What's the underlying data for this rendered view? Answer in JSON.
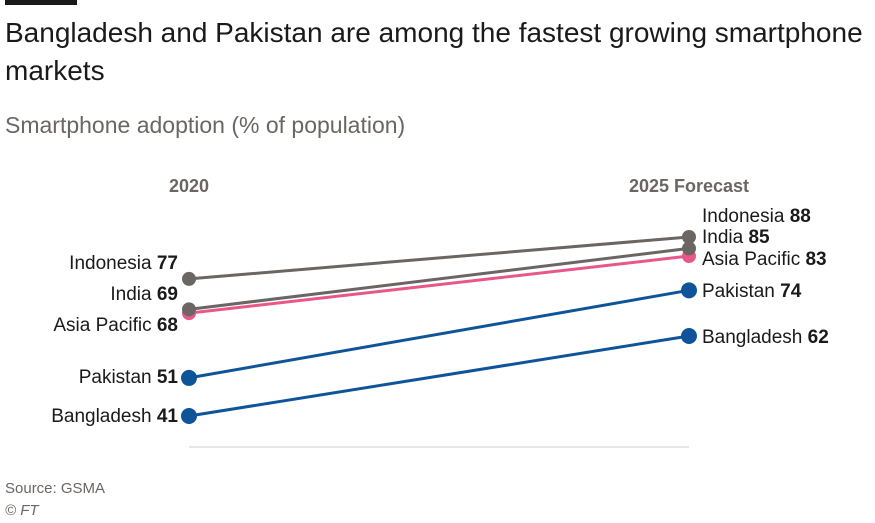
{
  "header": {
    "title": "Bangladesh and Pakistan are among the fastest growing smartphone markets",
    "subtitle": "Smartphone adoption (% of population)"
  },
  "footer": {
    "source": "Source: GSMA",
    "credit": "© FT"
  },
  "colors": {
    "grey": "#6b6663",
    "pink": "#e8578a",
    "blue": "#0f5499"
  },
  "chart_data": {
    "type": "line",
    "title": "Bangladesh and Pakistan are among the fastest growing smartphone markets",
    "subtitle": "Smartphone adoption (% of population)",
    "categories": [
      "2020",
      "2025 Forecast"
    ],
    "ylim": [
      41,
      88
    ],
    "grid": false,
    "series": [
      {
        "name": "Indonesia",
        "values": [
          77,
          88
        ],
        "color": "#6b6663"
      },
      {
        "name": "India",
        "values": [
          69,
          85
        ],
        "color": "#6b6663"
      },
      {
        "name": "Asia Pacific",
        "values": [
          68,
          83
        ],
        "color": "#e8578a"
      },
      {
        "name": "Pakistan",
        "values": [
          51,
          74
        ],
        "color": "#0f5499"
      },
      {
        "name": "Bangladesh",
        "values": [
          41,
          62
        ],
        "color": "#0f5499"
      }
    ]
  }
}
